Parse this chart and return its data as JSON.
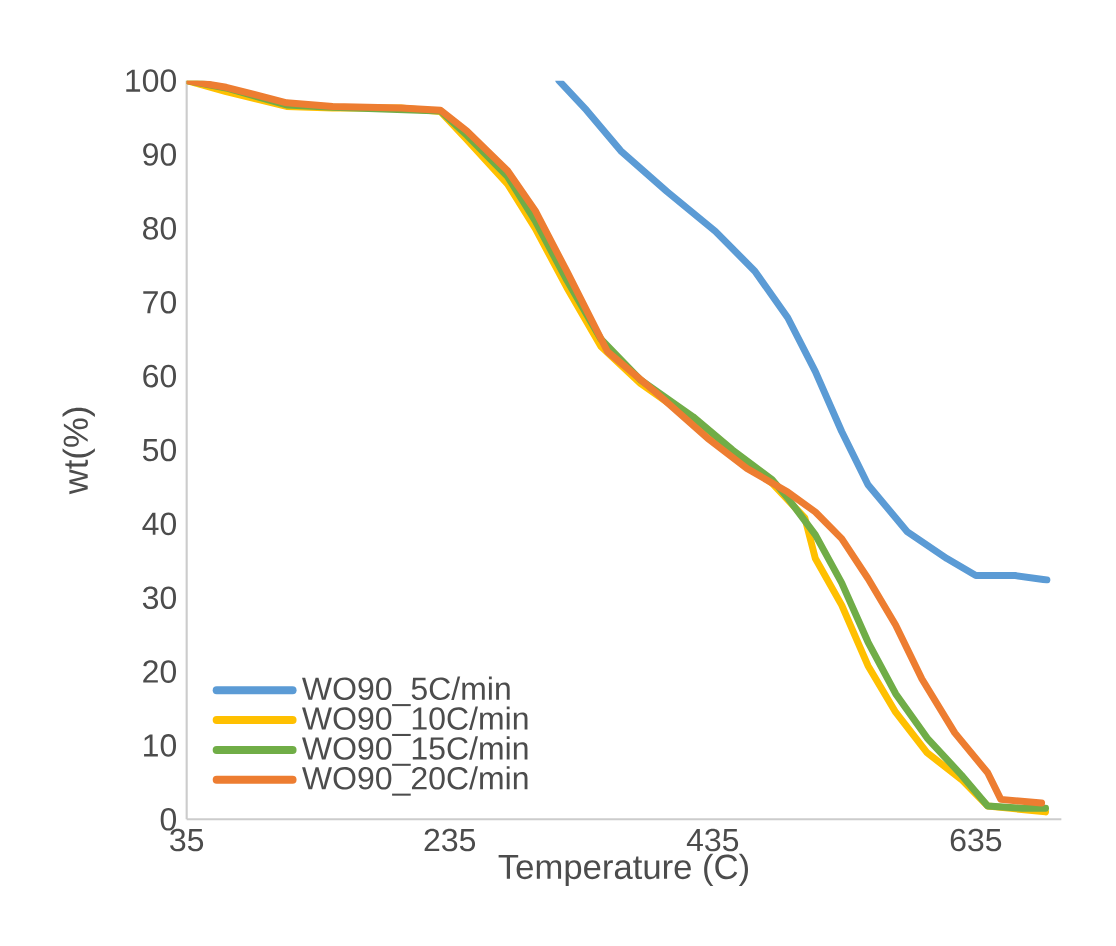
{
  "chart_data": {
    "type": "line",
    "xlabel": "Temperature (C)",
    "ylabel": "wt(%)",
    "xlim": [
      35,
      700
    ],
    "xticks": [
      35,
      235,
      435,
      635
    ],
    "ylim": [
      0,
      100
    ],
    "yticks": [
      0,
      10,
      20,
      30,
      40,
      50,
      60,
      70,
      80,
      90,
      100
    ],
    "grid": false,
    "legend": "bottom left",
    "marker": "none",
    "line_style": "solid",
    "series": [
      {
        "name": "WO90_5C/min",
        "color": "#5b9bd5",
        "x": [
          318,
          339,
          365,
          400,
          437,
          467,
          492,
          513,
          533,
          553,
          583,
          613,
          635,
          665,
          689
        ],
        "values": [
          100,
          96,
          90.5,
          85,
          79.6,
          74.2,
          67.9,
          60.6,
          52.5,
          45.3,
          38.9,
          35.3,
          33,
          33,
          32.4
        ]
      },
      {
        "name": "WO90_10C/min",
        "color": "#ffc000",
        "x": [
          35,
          65,
          111,
          146,
          198,
          228,
          248,
          279,
          300,
          324,
          350,
          380,
          420,
          450,
          480,
          505,
          513,
          533,
          553,
          574,
          598,
          624,
          644,
          688
        ],
        "values": [
          100,
          98.5,
          96.5,
          96.3,
          96.3,
          95.8,
          92,
          86,
          80,
          72,
          64,
          59,
          54,
          49.5,
          45.5,
          40.8,
          35.3,
          29,
          20.8,
          14.5,
          9,
          5.4,
          1.8,
          1
        ]
      },
      {
        "name": "WO90_15C/min",
        "color": "#70ad47",
        "x": [
          35,
          65,
          111,
          146,
          198,
          228,
          248,
          279,
          300,
          324,
          350,
          380,
          420,
          450,
          480,
          492,
          513,
          533,
          553,
          574,
          598,
          624,
          644,
          670,
          688
        ],
        "values": [
          100,
          99,
          96.7,
          96.4,
          null,
          95.9,
          92.6,
          87,
          81,
          73,
          65,
          59.5,
          54.5,
          50,
          46,
          43.5,
          38.5,
          32,
          24,
          17,
          11,
          6,
          1.8,
          1.5,
          1.5
        ]
      },
      {
        "name": "WO90_20C/min",
        "color": "#ed7d31",
        "x": [
          35,
          65,
          111,
          146,
          198,
          228,
          248,
          279,
          300,
          324,
          355,
          391,
          431,
          461,
          492,
          513,
          533,
          553,
          574,
          594,
          619,
          644,
          654,
          685
        ],
        "values": [
          100,
          99.1,
          97,
          96.5,
          96.3,
          96,
          93.2,
          87.8,
          82.4,
          74.2,
          63.3,
          57.9,
          51.6,
          47.5,
          44.3,
          41.6,
          38,
          32.6,
          26.3,
          19,
          11.7,
          6.3,
          2.7,
          2.2
        ]
      }
    ]
  }
}
